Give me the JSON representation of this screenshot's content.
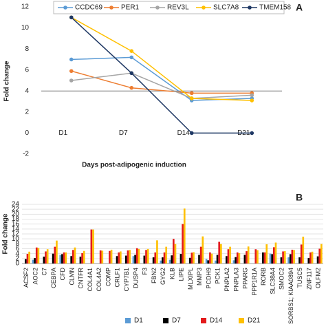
{
  "chart_data": [
    {
      "type": "line",
      "panel": "A",
      "ylabel": "Fold change",
      "xlabel": "Days post-adipogenic induction",
      "categories": [
        "D1",
        "D7",
        "D14",
        "D21"
      ],
      "series": [
        {
          "name": "CCDC69",
          "color": "#5b9bd5",
          "values": [
            7,
            7.2,
            3.1,
            3.3
          ]
        },
        {
          "name": "PER1",
          "color": "#ed7d31",
          "values": [
            5.9,
            4.3,
            3.8,
            3.8
          ]
        },
        {
          "name": "REV3L",
          "color": "#a5a5a5",
          "values": [
            5,
            5.7,
            3.3,
            3.6
          ]
        },
        {
          "name": "SLC7A8",
          "color": "#ffc000",
          "values": [
            11,
            7.8,
            3.3,
            3.1
          ]
        },
        {
          "name": "TMEM158",
          "color": "#1f3864",
          "values": [
            11,
            5.7,
            0,
            0
          ]
        }
      ],
      "ylim": [
        -2,
        12
      ],
      "yticks": [
        -2,
        0,
        2,
        4,
        6,
        8,
        10,
        12
      ],
      "reference_line": 4,
      "grid": false,
      "legend": "top"
    },
    {
      "type": "bar",
      "panel": "B",
      "ylabel": "Fold change",
      "categories": [
        "ACSF2",
        "AOC2",
        "C7",
        "CEBPA",
        "CFD",
        "CLMN",
        "CNTFR",
        "COL4A1",
        "COL4A2",
        "COMP",
        "CRLF1",
        "CYP7B1",
        "DUSP4",
        "F3",
        "FBN2",
        "GYG2",
        "KLB",
        "LIPE",
        "MLXIPL",
        "MMP3",
        "PCDH9",
        "PCK1",
        "PNPLA2",
        "PNPLA3",
        "PPARG",
        "PPP1R1A",
        "RORB",
        "SLC38A4",
        "SMOC2",
        "SORBS1; KIAA0894",
        "TUSC5",
        "ZNF117",
        "OLFM2"
      ],
      "series": [
        {
          "name": "D1",
          "color": "#5b9bd5",
          "values": [
            0,
            1.5,
            0,
            0,
            3.5,
            0,
            0,
            0,
            0,
            0,
            0,
            0,
            3.0,
            0,
            0,
            1.2,
            1.5,
            0,
            0,
            0,
            1.8,
            1.2,
            0,
            1.3,
            0,
            0,
            0,
            4.0,
            0,
            2.5,
            0,
            0,
            0
          ]
        },
        {
          "name": "D7",
          "color": "#000000",
          "values": [
            1.8,
            2.2,
            2.8,
            4.0,
            3.8,
            3.0,
            2.8,
            0,
            0,
            0,
            3.0,
            3.2,
            3.5,
            3.2,
            2.5,
            2.5,
            3.3,
            3.9,
            2.3,
            3.5,
            1.3,
            3.5,
            3.0,
            2.6,
            3.5,
            0,
            4.5,
            3.8,
            2.5,
            3.8,
            2.5,
            2.2,
            2.9
          ]
        },
        {
          "name": "D14",
          "color": "#e31a1c",
          "values": [
            3.9,
            6.5,
            4.9,
            6.8,
            4.5,
            5.5,
            4.2,
            13.8,
            5.3,
            5.1,
            4.5,
            5.3,
            6.2,
            5.5,
            4.5,
            4.5,
            10.0,
            16.0,
            4.4,
            6.8,
            4.5,
            8.8,
            5.8,
            4.5,
            5.0,
            5.8,
            4.5,
            6.6,
            4.9,
            5.6,
            7.7,
            4.5,
            6.0
          ]
        },
        {
          "name": "D21",
          "color": "#ffc000",
          "values": [
            4.8,
            6.3,
            5.8,
            9.3,
            4.5,
            6.5,
            5.1,
            13.8,
            5.2,
            5.6,
            4.9,
            5.5,
            5.9,
            5.9,
            9.4,
            6.8,
            7.9,
            22.3,
            4.6,
            11.0,
            4.0,
            7.9,
            6.8,
            4.2,
            6.9,
            5.4,
            7.8,
            8.5,
            5.0,
            5.5,
            10.9,
            4.8,
            7.9
          ]
        }
      ],
      "ylim": [
        0,
        24
      ],
      "yticks": [
        0,
        2,
        4,
        6,
        8,
        10,
        12,
        14,
        16,
        18,
        20,
        22,
        24
      ],
      "grid": true,
      "legend": "bottom"
    }
  ]
}
